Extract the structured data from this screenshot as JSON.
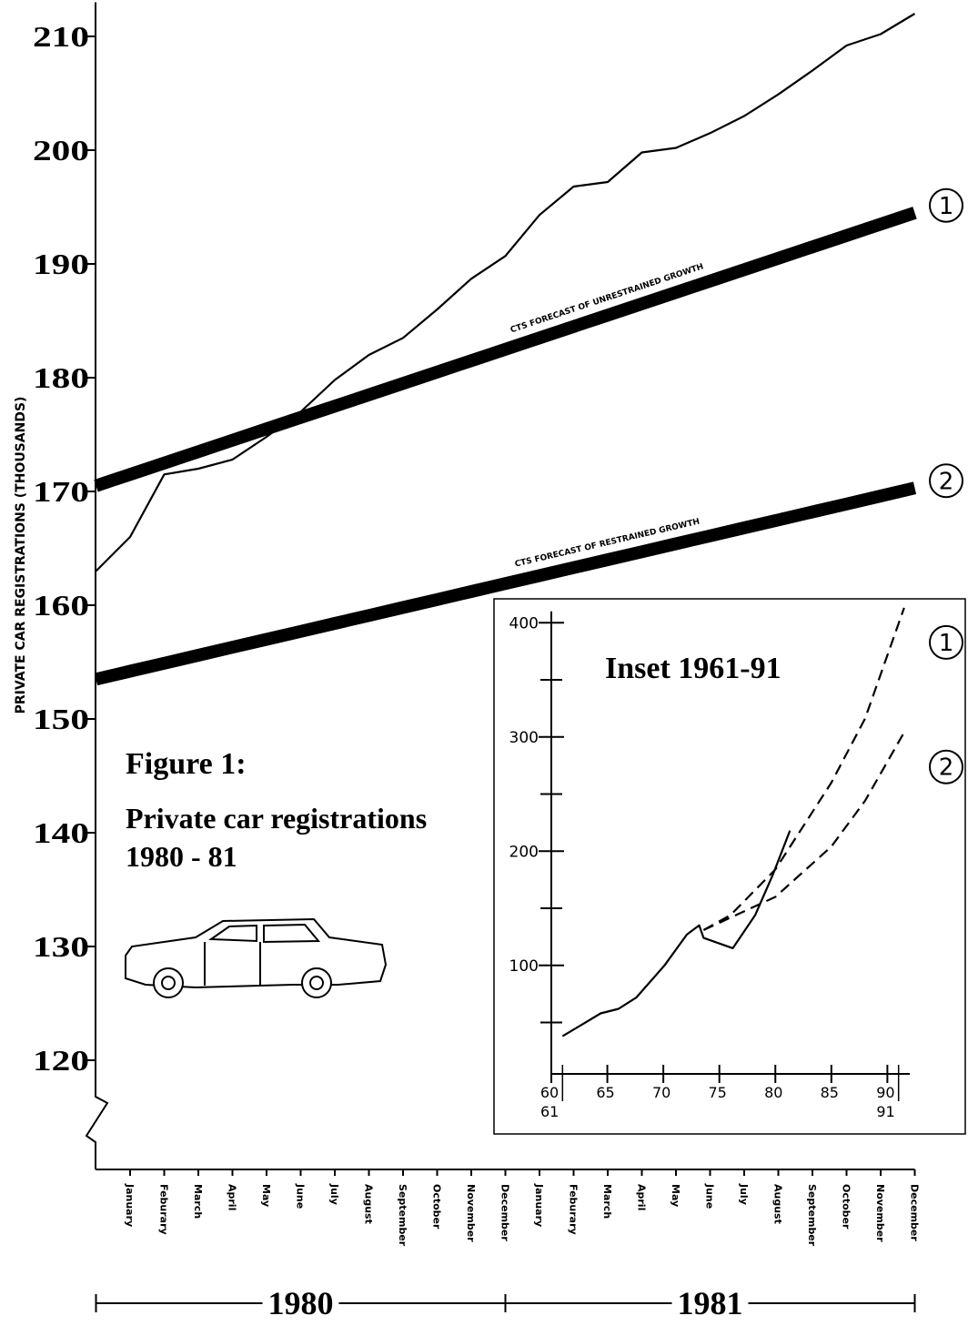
{
  "chart_data": [
    {
      "type": "line",
      "title": "Figure 1:",
      "subtitle": [
        "Private car registrations",
        "1980 - 81"
      ],
      "ylabel": "PRIVATE CAR REGISTRATIONS (THOUSANDS)",
      "categories": [
        null,
        "January",
        "Feburary",
        "March",
        "April",
        "May",
        "June",
        "July",
        "August",
        "September",
        "October",
        "November",
        "December",
        "January",
        "Feburary",
        "March",
        "April",
        "May",
        "June",
        "July",
        "August",
        "September",
        "October",
        "November",
        "December"
      ],
      "years": [
        "1980",
        "1981"
      ],
      "ylim": [
        110,
        213
      ],
      "yticks": [
        120,
        130,
        140,
        150,
        160,
        170,
        180,
        190,
        200,
        210
      ],
      "axis_break": true,
      "series": [
        {
          "color": "#000000",
          "style": "solid",
          "values": [
            163,
            166,
            171.5,
            172,
            172.8,
            174.8,
            177,
            179.8,
            182,
            183.5,
            186,
            188.7,
            190.7,
            194.3,
            196.8,
            197.2,
            199.8,
            200.2,
            201.5,
            203,
            204.9,
            207,
            209.2,
            210.2,
            212
          ]
        },
        {
          "name": "CTS FORECAST OF UNRESTRAINED GROWTH",
          "marker": "1",
          "color": "#000000",
          "style": "band",
          "values": [
            170.5,
            171.5,
            172.5,
            173.5,
            174.5,
            175.5,
            176.5,
            177.5,
            178.5,
            179.5,
            180.5,
            181.5,
            182.5,
            183.5,
            184.5,
            185.5,
            186.5,
            187.5,
            188.5,
            189.5,
            190.5,
            191.5,
            192.5,
            193.5,
            194.5
          ]
        },
        {
          "name": "CTS FORECAST OF RESTRAINED GROWTH",
          "marker": "2",
          "color": "#000000",
          "style": "band",
          "values": [
            153.5,
            154.2,
            154.9,
            155.6,
            156.3,
            157.0,
            157.7,
            158.4,
            159.1,
            159.8,
            160.5,
            161.2,
            161.9,
            162.6,
            163.3,
            164.0,
            164.7,
            165.4,
            166.1,
            166.8,
            167.5,
            168.2,
            168.9,
            169.6,
            170.3
          ]
        }
      ]
    },
    {
      "type": "line",
      "title": "Inset 1961-91",
      "xlim": [
        60,
        92
      ],
      "xticks": [
        60,
        65,
        70,
        75,
        80,
        85,
        90
      ],
      "xticks_second_row": [
        61,
        91
      ],
      "ylim": [
        5,
        410
      ],
      "yticks": [
        100,
        200,
        300,
        400
      ],
      "yminorticks": [
        50,
        150,
        250,
        350
      ],
      "series": [
        {
          "color": "#000000",
          "style": "solid",
          "x": [
            61,
            64.4,
            66,
            67.6,
            70.1,
            72.1,
            73.2,
            73.6,
            76.2,
            78.2,
            79.8,
            81.3
          ],
          "values": [
            38,
            58,
            62,
            72,
            100,
            127,
            135,
            124,
            115,
            144,
            180,
            218
          ]
        },
        {
          "marker": "1",
          "color": "#000000",
          "style": "dashed",
          "x": [
            73.6,
            76,
            80,
            85,
            88,
            91.5
          ],
          "values": [
            131,
            144,
            184,
            260,
            316,
            413
          ]
        },
        {
          "marker": "2",
          "color": "#000000",
          "style": "dashed",
          "x": [
            73.6,
            80,
            85,
            88,
            91.5
          ],
          "values": [
            131,
            160,
            204,
            244,
            304
          ]
        }
      ]
    }
  ]
}
